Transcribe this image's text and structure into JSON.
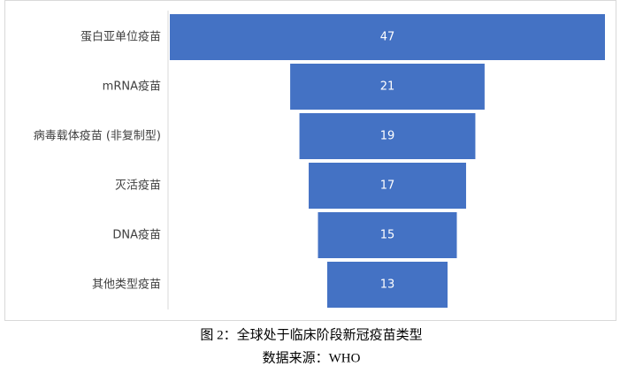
{
  "chart_data": {
    "type": "funnel",
    "categories": [
      "蛋白亚单位疫苗",
      "mRNA疫苗",
      "病毒载体疫苗 (非复制型)",
      "灭活疫苗",
      "DNA疫苗",
      "其他类型疫苗"
    ],
    "values": [
      47,
      21,
      19,
      17,
      15,
      13
    ],
    "color": "#4472c4",
    "caption": "图 2：全球处于临床阶段新冠疫苗类型",
    "source": "数据来源：WHO"
  }
}
